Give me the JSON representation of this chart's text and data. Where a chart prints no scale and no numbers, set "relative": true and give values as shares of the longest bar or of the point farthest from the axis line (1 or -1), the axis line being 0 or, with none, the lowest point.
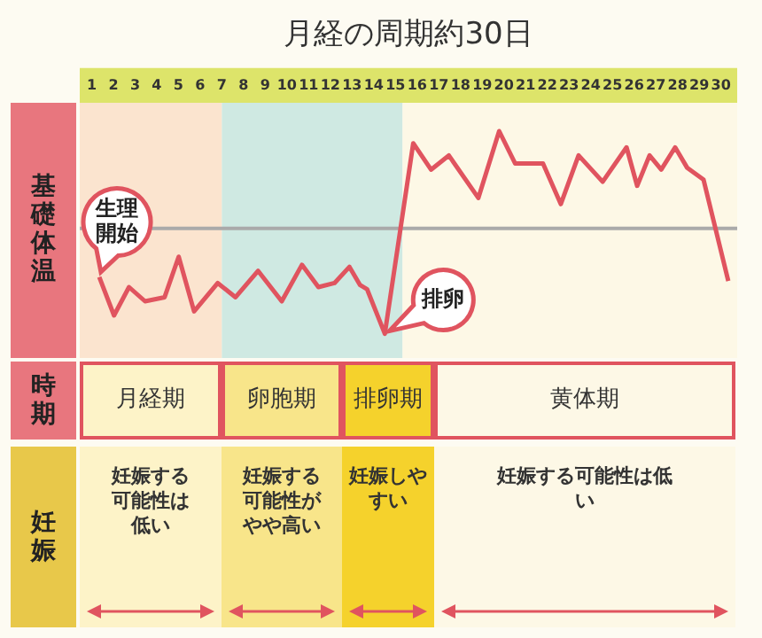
{
  "chart_data": [
    {
      "type": "line",
      "title": "月経の周期約30日",
      "ylabel": "基礎体温",
      "relative": true,
      "legend": false,
      "grid": false,
      "xlim": [
        0.45,
        30.75
      ],
      "xticks": [
        1,
        2,
        3,
        4,
        5,
        6,
        7,
        8,
        9,
        10,
        11,
        12,
        13,
        14,
        15,
        16,
        17,
        18,
        19,
        20,
        21,
        22,
        23,
        24,
        25,
        26,
        27,
        28,
        29,
        30
      ],
      "series": [
        {
          "color": "#e0545f",
          "x": [
            1.35,
            2.03,
            2.72,
            3.46,
            4.36,
            5.01,
            5.72,
            6.81,
            7.63,
            8.67,
            9.76,
            10.69,
            11.45,
            12.19,
            12.88,
            13.37,
            13.69,
            14.51,
            15.82,
            16.64,
            17.46,
            18.82,
            19.78,
            20.52,
            21.8,
            22.62,
            23.44,
            24.55,
            25.65,
            26.14,
            26.71,
            27.25,
            27.89,
            28.44,
            29.2,
            30.34
          ],
          "values": [
            0.28,
            0.09,
            0.23,
            0.16,
            0.18,
            0.38,
            0.11,
            0.25,
            0.18,
            0.31,
            0.16,
            0.34,
            0.23,
            0.25,
            0.33,
            0.24,
            0.22,
            0,
            0.94,
            0.81,
            0.88,
            0.67,
            1,
            0.84,
            0.84,
            0.64,
            0.88,
            0.75,
            0.92,
            0.73,
            0.88,
            0.81,
            0.92,
            0.82,
            0.76,
            0.26
          ]
        }
      ],
      "ref_lines": [
        {
          "axis": "y",
          "value": 0.52,
          "color": "#aaaaaa"
        }
      ],
      "bands": [
        {
          "axis": "x",
          "from": 0.45,
          "to": 7.0,
          "color": "#fbe4cf"
        },
        {
          "axis": "x",
          "from": 7.0,
          "to": 15.33,
          "color": "#cfe9e2"
        },
        {
          "axis": "x",
          "from": 15.33,
          "to": 30.75,
          "color": "#fdf8e6"
        }
      ],
      "annotations": [
        {
          "text": "生理開始",
          "x": 1.35,
          "y": 0.28
        },
        {
          "text": "排卵",
          "x": 14.51,
          "y": 0
        }
      ]
    },
    {
      "type": "other",
      "annotations": [
        "時期",
        "月経期",
        "卵胞期",
        "排卵期",
        "黄体期"
      ]
    },
    {
      "type": "other",
      "annotations": [
        "妊娠",
        "妊娠する可能性は低い",
        "妊娠する可能性がやや高い",
        "妊娠しやすい",
        "妊娠する可能性は低い"
      ]
    }
  ]
}
